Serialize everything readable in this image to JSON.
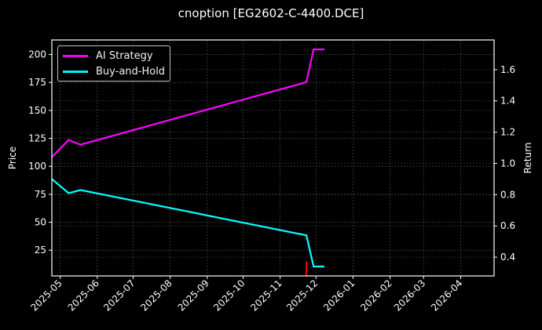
{
  "title": "cnoption [EG2602-C-4400.DCE]",
  "legend": {
    "items": [
      {
        "label": "AI Strategy",
        "color": "#ff00ff"
      },
      {
        "label": "Buy-and-Hold",
        "color": "#00ffff"
      }
    ]
  },
  "axes": {
    "left_label": "Price",
    "right_label": "Return",
    "left_ticks": [
      "25",
      "50",
      "75",
      "100",
      "125",
      "150",
      "175",
      "200"
    ],
    "right_ticks": [
      "0.4",
      "0.6",
      "0.8",
      "1.0",
      "1.2",
      "1.4",
      "1.6"
    ],
    "x_ticks": [
      "2025-05",
      "2025-06",
      "2025-07",
      "2025-08",
      "2025-09",
      "2025-10",
      "2025-11",
      "2025-12",
      "2026-01",
      "2026-02",
      "2026-03",
      "2026-04"
    ]
  },
  "chart_data": {
    "type": "line",
    "title": "cnoption [EG2602-C-4400.DCE]",
    "xlabel": "",
    "ylabel": "Price",
    "y2label": "Return",
    "ylim": [
      2,
      213
    ],
    "y2lim": [
      0.28,
      1.79
    ],
    "xlim": [
      "2025-04-24",
      "2026-04-29"
    ],
    "grid": true,
    "legend_position": "upper left",
    "x": [
      "2025-04-24",
      "2025-05-08",
      "2025-05-18",
      "2025-11-23",
      "2025-11-29",
      "2025-12-08"
    ],
    "series": [
      {
        "name": "AI Strategy",
        "axis": "right",
        "color": "#ff00ff",
        "values": [
          1.04,
          1.15,
          1.12,
          1.52,
          1.73,
          1.73
        ]
      },
      {
        "name": "Buy-and-Hold",
        "axis": "right",
        "color": "#00ffff",
        "values": [
          0.9,
          0.81,
          0.83,
          0.54,
          0.34,
          0.34
        ]
      }
    ],
    "annotations": [
      {
        "type": "vertical-marker",
        "x": "2025-11-23",
        "color": "#ff0000",
        "y_range_price": [
          2,
          15
        ]
      }
    ]
  }
}
